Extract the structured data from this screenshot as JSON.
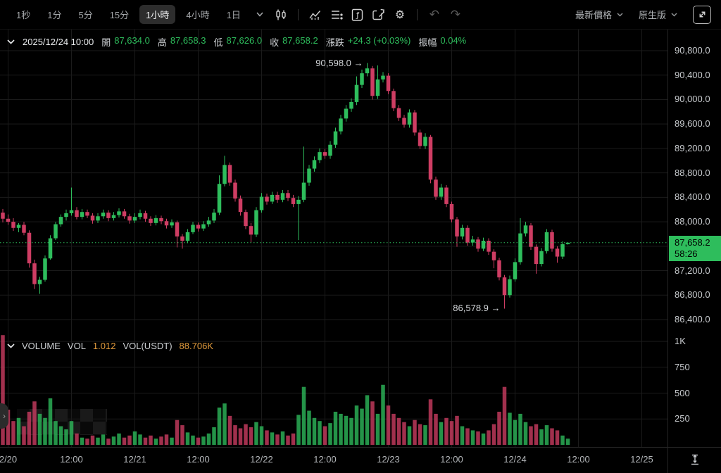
{
  "colors": {
    "bg": "#000000",
    "green": "#2ebd5c",
    "red": "#ce3d63",
    "grid": "#1b1b1b",
    "divider": "#262626",
    "orange": "#e09a3c",
    "badge_text": "#000000",
    "axis_text": "#c6c9cc",
    "dotted_line": "#2ebd5c"
  },
  "toolbar": {
    "intervals": [
      {
        "label": "1秒",
        "selected": false
      },
      {
        "label": "1分",
        "selected": false
      },
      {
        "label": "5分",
        "selected": false
      },
      {
        "label": "15分",
        "selected": false
      },
      {
        "label": "1小時",
        "selected": true
      },
      {
        "label": "4小時",
        "selected": false
      },
      {
        "label": "1日",
        "selected": false
      }
    ],
    "price_mode": "最新價格",
    "version": "原生版"
  },
  "icons": {
    "gear": "⚙",
    "undo": "↶",
    "redo": "↷",
    "panel_handle": "›"
  },
  "ohlc": {
    "date": "2025/12/24 10:00",
    "o_label": "開",
    "o": "87,634.0",
    "h_label": "高",
    "h": "87,658.3",
    "l_label": "低",
    "l": "87,626.0",
    "c_label": "收",
    "c": "87,658.2",
    "chg_label": "漲跌",
    "chg": "+24.3 (+0.03%)",
    "amp_label": "振幅",
    "amp": "0.04%"
  },
  "current_price": {
    "value": "87,658.2",
    "countdown": "58:26"
  },
  "annotations": {
    "high": "90,598.0 →",
    "low": "86,578.9 →"
  },
  "volume_header": {
    "title": "VOLUME",
    "vol_label": "VOL",
    "vol_value": "1.012",
    "vol_usdt_label": "VOL(USDT)",
    "vol_usdt_value": "88.706K"
  },
  "chart_data": {
    "type": "candlestick",
    "interval": "1小時",
    "title": "",
    "ylim": [
      86400,
      90800
    ],
    "price_ticks": [
      {
        "label": "90,800.0",
        "value": 90800
      },
      {
        "label": "90,400.0",
        "value": 90400
      },
      {
        "label": "90,000.0",
        "value": 90000
      },
      {
        "label": "89,600.0",
        "value": 89600
      },
      {
        "label": "89,200.0",
        "value": 89200
      },
      {
        "label": "88,800.0",
        "value": 88800
      },
      {
        "label": "88,400.0",
        "value": 88400
      },
      {
        "label": "88,000.0",
        "value": 88000
      },
      {
        "label": "87,600.0",
        "value": 87600,
        "hidden": true
      },
      {
        "label": "87,200.0",
        "value": 87200
      },
      {
        "label": "86,800.0",
        "value": 86800
      },
      {
        "label": "86,400.0",
        "value": 86400
      }
    ],
    "volume_ticks": [
      {
        "label": "1K",
        "value": 1000
      },
      {
        "label": "750",
        "value": 750
      },
      {
        "label": "500",
        "value": 500
      },
      {
        "label": "250",
        "value": 250
      }
    ],
    "x_ticks": [
      {
        "label": "2/20",
        "index": 1
      },
      {
        "label": "12:00",
        "index": 13
      },
      {
        "label": "12/21",
        "index": 25
      },
      {
        "label": "12:00",
        "index": 37
      },
      {
        "label": "12/22",
        "index": 49
      },
      {
        "label": "12:00",
        "index": 61
      },
      {
        "label": "12/23",
        "index": 73
      },
      {
        "label": "12:00",
        "index": 85
      },
      {
        "label": "12/24",
        "index": 97
      },
      {
        "label": "12:00",
        "index": 109
      },
      {
        "label": "12/25",
        "index": 121
      }
    ],
    "last_price": 87658.2,
    "high_marker": 90598.0,
    "low_marker": 86578.9,
    "candles": [
      [
        88150,
        88210,
        87990,
        88050
      ],
      [
        88050,
        88120,
        87950,
        88000
      ],
      [
        88000,
        88060,
        87850,
        87900
      ],
      [
        87900,
        87980,
        87830,
        87950
      ],
      [
        87950,
        88000,
        87780,
        87820
      ],
      [
        87820,
        87860,
        87250,
        87320
      ],
      [
        87320,
        87380,
        86900,
        86980
      ],
      [
        86980,
        87100,
        86820,
        87050
      ],
      [
        87050,
        87450,
        87020,
        87400
      ],
      [
        87400,
        87780,
        87380,
        87730
      ],
      [
        87730,
        88000,
        87700,
        87960
      ],
      [
        87960,
        88120,
        87920,
        88080
      ],
      [
        88080,
        88200,
        88020,
        88140
      ],
      [
        88140,
        88560,
        88100,
        88190
      ],
      [
        88190,
        88240,
        88040,
        88080
      ],
      [
        88080,
        88210,
        88040,
        88160
      ],
      [
        88160,
        88200,
        88060,
        88100
      ],
      [
        88100,
        88140,
        87970,
        88020
      ],
      [
        88020,
        88140,
        87980,
        88090
      ],
      [
        88090,
        88200,
        88050,
        88150
      ],
      [
        88150,
        88190,
        88010,
        88060
      ],
      [
        88060,
        88160,
        88020,
        88110
      ],
      [
        88110,
        88220,
        88070,
        88170
      ],
      [
        88170,
        88210,
        88050,
        88090
      ],
      [
        88090,
        88130,
        87970,
        88020
      ],
      [
        88020,
        88140,
        87980,
        88080
      ],
      [
        88080,
        88200,
        88040,
        88140
      ],
      [
        88140,
        88180,
        88000,
        88050
      ],
      [
        88050,
        88090,
        87930,
        87980
      ],
      [
        87980,
        88110,
        87940,
        88060
      ],
      [
        88060,
        88100,
        87960,
        88010
      ],
      [
        88010,
        88050,
        87890,
        87940
      ],
      [
        87940,
        88040,
        87900,
        87990
      ],
      [
        87990,
        88020,
        87580,
        87760
      ],
      [
        87760,
        87800,
        87560,
        87690
      ],
      [
        87690,
        87880,
        87650,
        87830
      ],
      [
        87830,
        88000,
        87800,
        87950
      ],
      [
        87950,
        87990,
        87840,
        87890
      ],
      [
        87890,
        88010,
        87850,
        87960
      ],
      [
        87960,
        88080,
        87920,
        88020
      ],
      [
        88020,
        88210,
        87980,
        88150
      ],
      [
        88150,
        88760,
        88110,
        88620
      ],
      [
        88620,
        89080,
        88580,
        88930
      ],
      [
        88930,
        88970,
        88590,
        88640
      ],
      [
        88640,
        88690,
        88330,
        88380
      ],
      [
        88380,
        88430,
        88100,
        88160
      ],
      [
        88160,
        88200,
        87880,
        87930
      ],
      [
        87930,
        87980,
        87660,
        87790
      ],
      [
        87790,
        88240,
        87750,
        88190
      ],
      [
        88190,
        88470,
        88150,
        88410
      ],
      [
        88410,
        88460,
        88280,
        88330
      ],
      [
        88330,
        88490,
        88290,
        88440
      ],
      [
        88440,
        88490,
        88310,
        88360
      ],
      [
        88360,
        88520,
        88320,
        88470
      ],
      [
        88470,
        88520,
        88340,
        88390
      ],
      [
        88390,
        88440,
        88240,
        88290
      ],
      [
        88290,
        88420,
        87700,
        88360
      ],
      [
        88360,
        89230,
        88320,
        88640
      ],
      [
        88640,
        88930,
        88590,
        88870
      ],
      [
        88870,
        89070,
        88820,
        89010
      ],
      [
        89010,
        89200,
        88960,
        89140
      ],
      [
        89140,
        89190,
        89030,
        89080
      ],
      [
        89080,
        89320,
        89030,
        89260
      ],
      [
        89260,
        89540,
        89210,
        89480
      ],
      [
        89480,
        89750,
        89430,
        89690
      ],
      [
        89690,
        89910,
        89640,
        89850
      ],
      [
        89850,
        90020,
        89800,
        89960
      ],
      [
        89960,
        90380,
        89910,
        90240
      ],
      [
        90240,
        90490,
        90190,
        90430
      ],
      [
        90430,
        90598,
        90380,
        90510
      ],
      [
        90510,
        90550,
        90000,
        90060
      ],
      [
        90060,
        90560,
        90010,
        90330
      ],
      [
        90330,
        90450,
        90280,
        90390
      ],
      [
        90390,
        90430,
        90090,
        90140
      ],
      [
        90140,
        90180,
        89810,
        89860
      ],
      [
        89860,
        89910,
        89650,
        89700
      ],
      [
        89700,
        89750,
        89540,
        89590
      ],
      [
        89590,
        89840,
        89540,
        89790
      ],
      [
        89790,
        89830,
        89410,
        89460
      ],
      [
        89460,
        89510,
        89190,
        89240
      ],
      [
        89240,
        89450,
        89190,
        89390
      ],
      [
        89390,
        89420,
        88630,
        88690
      ],
      [
        88690,
        88740,
        88360,
        88410
      ],
      [
        88410,
        88620,
        88360,
        88560
      ],
      [
        88560,
        88600,
        88240,
        88290
      ],
      [
        88290,
        88330,
        87990,
        88040
      ],
      [
        88040,
        88080,
        87590,
        87760
      ],
      [
        87760,
        87950,
        87710,
        87900
      ],
      [
        87900,
        87940,
        87610,
        87660
      ],
      [
        87660,
        87770,
        87610,
        87710
      ],
      [
        87710,
        87750,
        87510,
        87560
      ],
      [
        87560,
        87740,
        87520,
        87690
      ],
      [
        87690,
        87730,
        87460,
        87510
      ],
      [
        87510,
        87550,
        87240,
        87370
      ],
      [
        87370,
        87410,
        87040,
        87090
      ],
      [
        87090,
        87130,
        86578.9,
        86800
      ],
      [
        86800,
        87120,
        86760,
        87060
      ],
      [
        87060,
        87400,
        87020,
        87340
      ],
      [
        87340,
        88060,
        87300,
        87810
      ],
      [
        87810,
        88000,
        87760,
        87940
      ],
      [
        87940,
        87980,
        87540,
        87590
      ],
      [
        87590,
        87630,
        87150,
        87310
      ],
      [
        87310,
        87570,
        87270,
        87520
      ],
      [
        87520,
        87880,
        87480,
        87830
      ],
      [
        87830,
        87870,
        87510,
        87560
      ],
      [
        87560,
        87600,
        87330,
        87430
      ],
      [
        87430,
        87680,
        87390,
        87634
      ],
      [
        87634,
        87658.3,
        87626,
        87658.2
      ]
    ],
    "volumes": [
      1060,
      340,
      230,
      260,
      180,
      320,
      420,
      300,
      260,
      450,
      230,
      180,
      150,
      230,
      110,
      70,
      60,
      90,
      70,
      100,
      60,
      80,
      110,
      70,
      90,
      130,
      100,
      70,
      90,
      60,
      80,
      100,
      70,
      240,
      190,
      120,
      90,
      70,
      80,
      110,
      170,
      360,
      400,
      280,
      190,
      160,
      200,
      170,
      220,
      180,
      140,
      120,
      100,
      130,
      90,
      110,
      290,
      560,
      330,
      260,
      230,
      180,
      210,
      320,
      300,
      280,
      260,
      380,
      350,
      480,
      420,
      300,
      580,
      380,
      300,
      260,
      220,
      180,
      240,
      200,
      190,
      440,
      300,
      220,
      260,
      230,
      280,
      180,
      160,
      140,
      130,
      110,
      140,
      200,
      320,
      560,
      310,
      240,
      300,
      220,
      180,
      200,
      150,
      190,
      160,
      140,
      90,
      60
    ]
  }
}
